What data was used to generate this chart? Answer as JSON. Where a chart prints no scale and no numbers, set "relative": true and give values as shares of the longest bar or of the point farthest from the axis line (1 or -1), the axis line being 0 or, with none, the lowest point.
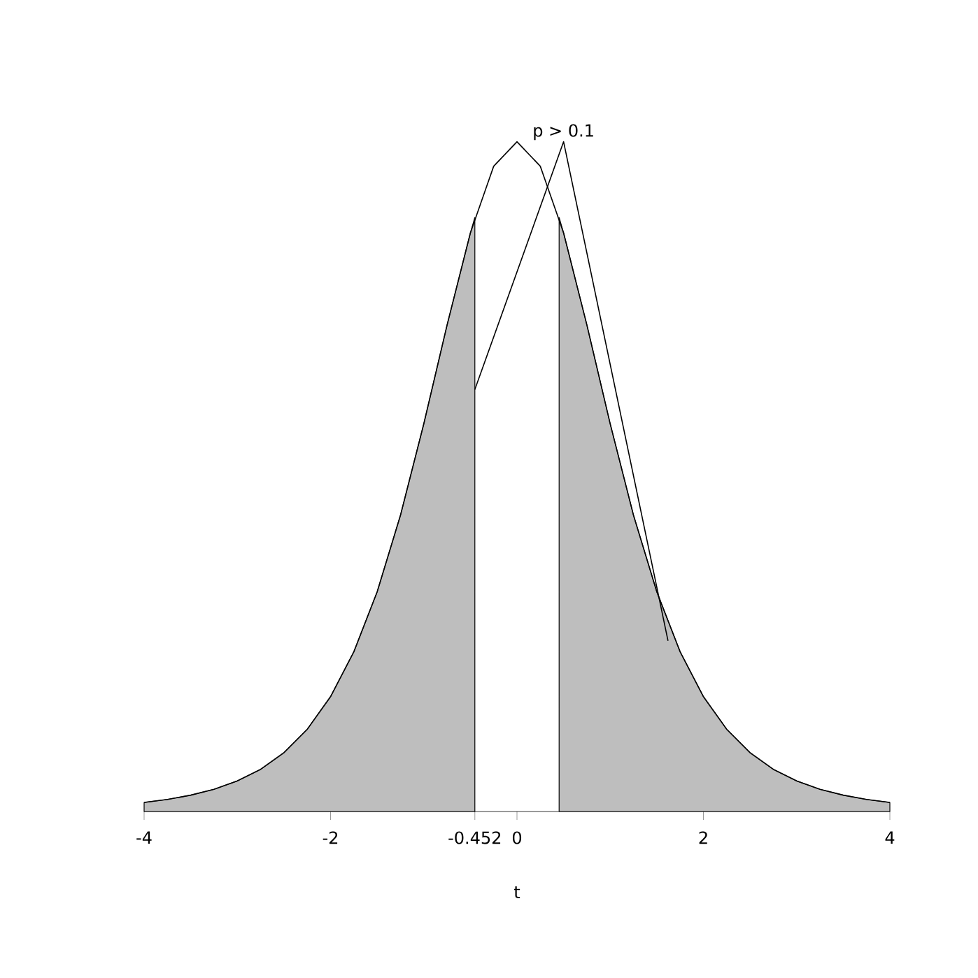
{
  "chart_data": {
    "type": "area",
    "relative": true,
    "xlabel": "t",
    "xlim": [
      -4,
      4
    ],
    "xticks": [
      -4,
      -2,
      {
        "value": -0.452,
        "label": "-0.452"
      },
      0,
      2,
      4
    ],
    "annotations": [
      {
        "text": "p > 0.1",
        "x": 0.5,
        "y": 1.0
      }
    ],
    "series": [
      {
        "color": "#bebebe",
        "x": [
          -4,
          -3.75,
          -3.5,
          -3.25,
          -3,
          -2.75,
          -2.5,
          -2.25,
          -2,
          -1.75,
          -1.5,
          -1.25,
          -1,
          -0.75,
          -0.5,
          -0.452
        ],
        "values": [
          0.0135,
          0.018,
          0.0244,
          0.0332,
          0.0456,
          0.063,
          0.0878,
          0.1227,
          0.1715,
          0.2385,
          0.328,
          0.4423,
          0.5787,
          0.7263,
          0.8638,
          0.887
        ]
      },
      {
        "color": "#bebebe",
        "x": [
          0.452,
          0.5,
          0.75,
          1,
          1.25,
          1.5,
          1.75,
          2,
          2.25,
          2.5,
          2.75,
          3,
          3.25,
          3.5,
          3.75,
          4
        ],
        "values": [
          0.887,
          0.8638,
          0.7263,
          0.5787,
          0.4423,
          0.328,
          0.2385,
          0.1715,
          0.1227,
          0.0878,
          0.063,
          0.0456,
          0.0332,
          0.0244,
          0.018,
          0.0135
        ]
      },
      {
        "type": "line",
        "color": "#000000",
        "x": [
          -4,
          -3.75,
          -3.5,
          -3.25,
          -3,
          -2.75,
          -2.5,
          -2.25,
          -2,
          -1.75,
          -1.5,
          -1.25,
          -1,
          -0.75,
          -0.5,
          -0.25,
          0,
          0.25,
          0.5,
          0.75,
          1,
          1.25,
          1.5,
          1.75,
          2,
          2.25,
          2.5,
          2.75,
          3,
          3.25,
          3.5,
          3.75,
          4
        ],
        "values": [
          0.0135,
          0.018,
          0.0244,
          0.0332,
          0.0456,
          0.063,
          0.0878,
          0.1227,
          0.1715,
          0.2385,
          0.328,
          0.4423,
          0.5787,
          0.7263,
          0.8638,
          0.9634,
          1,
          0.9634,
          0.8638,
          0.7263,
          0.5787,
          0.4423,
          0.328,
          0.2385,
          0.1715,
          0.1227,
          0.0878,
          0.063,
          0.0456,
          0.0332,
          0.0244,
          0.018,
          0.0135
        ]
      },
      {
        "type": "line",
        "color": "#000000",
        "x": [
          -0.452,
          0.5,
          1.62
        ],
        "values": [
          0.63,
          1.0,
          0.255
        ]
      }
    ]
  }
}
